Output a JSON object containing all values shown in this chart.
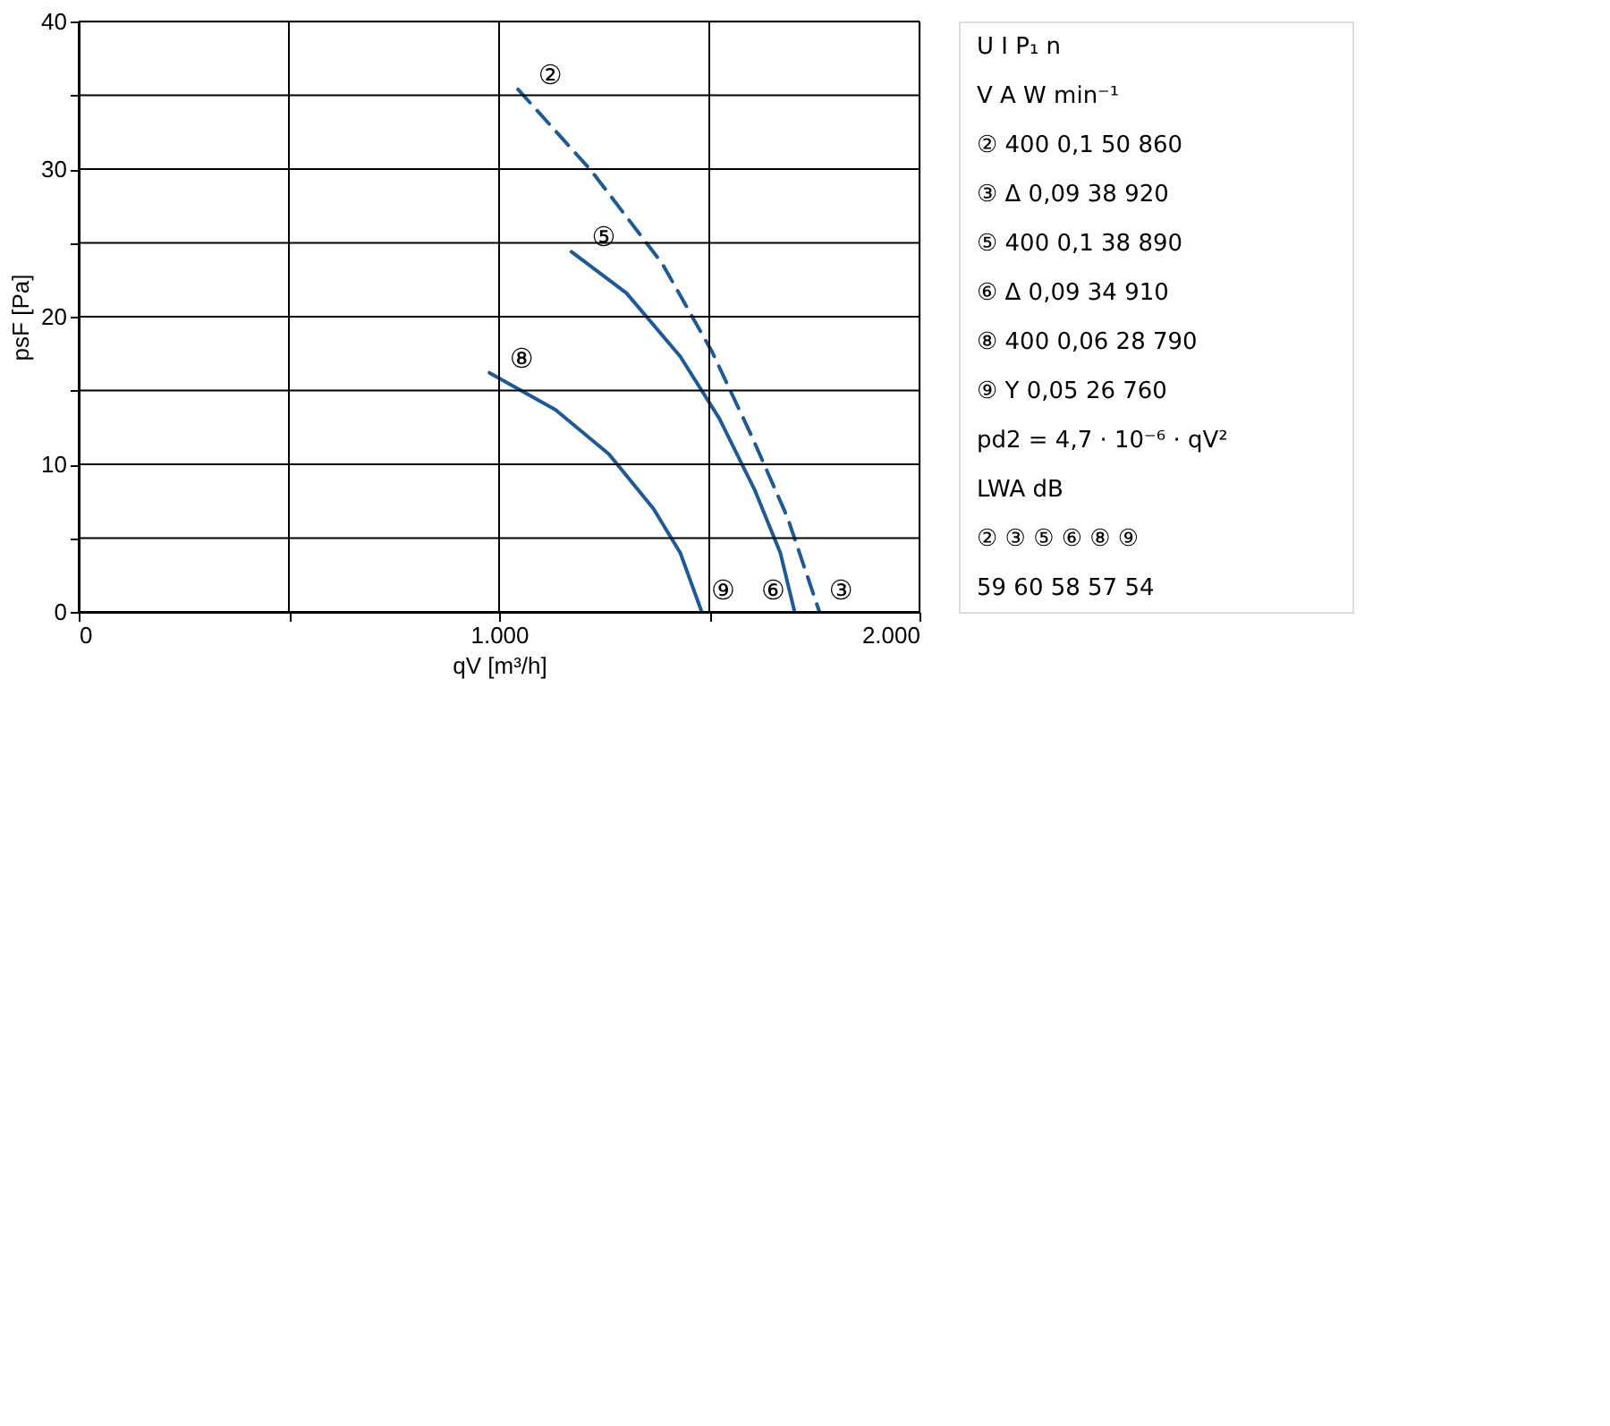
{
  "chart_data": {
    "type": "line",
    "xlabel": "qV [m³/h]",
    "ylabel": "psF [Pa]",
    "xlim": [
      0,
      2000
    ],
    "ylim": [
      0,
      40
    ],
    "xticks": [
      0,
      {
        "value": 500,
        "label": null
      },
      {
        "value": 1000,
        "label": "1.000"
      },
      {
        "value": 1500,
        "label": null
      },
      {
        "value": 2000,
        "label": "2.000"
      }
    ],
    "yticks": [
      0,
      {
        "value": 5,
        "label": null
      },
      10,
      {
        "value": 15,
        "label": null
      },
      20,
      {
        "value": 25,
        "label": null
      },
      30,
      {
        "value": 35,
        "label": null
      },
      40
    ],
    "grid": true,
    "series": [
      {
        "name": "②",
        "color": "#1f5a96",
        "line_style": "dashed",
        "x": [
          1045,
          1219,
          1388,
          1507,
          1601,
          1686,
          1762
        ],
        "values": [
          35.4,
          29.9,
          23.6,
          17.6,
          11.9,
          6.4,
          0
        ]
      },
      {
        "name": "⑤",
        "color": "#1f5a96",
        "line_style": "solid",
        "x": [
          1172,
          1303,
          1431,
          1524,
          1609,
          1669,
          1703
        ],
        "values": [
          24.4,
          21.6,
          17.3,
          13.1,
          8.2,
          4.0,
          0
        ]
      },
      {
        "name": "⑧",
        "color": "#1f5a96",
        "line_style": "solid",
        "x": [
          977,
          1134,
          1261,
          1367,
          1431,
          1482
        ],
        "values": [
          16.2,
          13.7,
          10.7,
          7.0,
          4.0,
          0
        ]
      }
    ],
    "annotations": [
      {
        "text": "⑨",
        "x": 1482,
        "y": 0
      },
      {
        "text": "⑥",
        "x": 1703,
        "y": 0
      },
      {
        "text": "③",
        "x": 1762,
        "y": 0
      },
      "U  I  P₁  n",
      "V  A  W  min⁻¹",
      "② 400  0,1  50  860",
      "③ Δ  0,09  38  920",
      "⑤ 400  0,1  38  890",
      "⑥ Δ  0,09  34  910",
      "⑧ 400  0,06  28  790",
      "⑨ Y  0,05  26  760",
      "pd2 = 4,7 · 10⁻⁶ · qV²",
      "LWA dB",
      "②  ③  ⑤  ⑥  ⑧  ⑨",
      "59  60  58  57  54"
    ]
  }
}
